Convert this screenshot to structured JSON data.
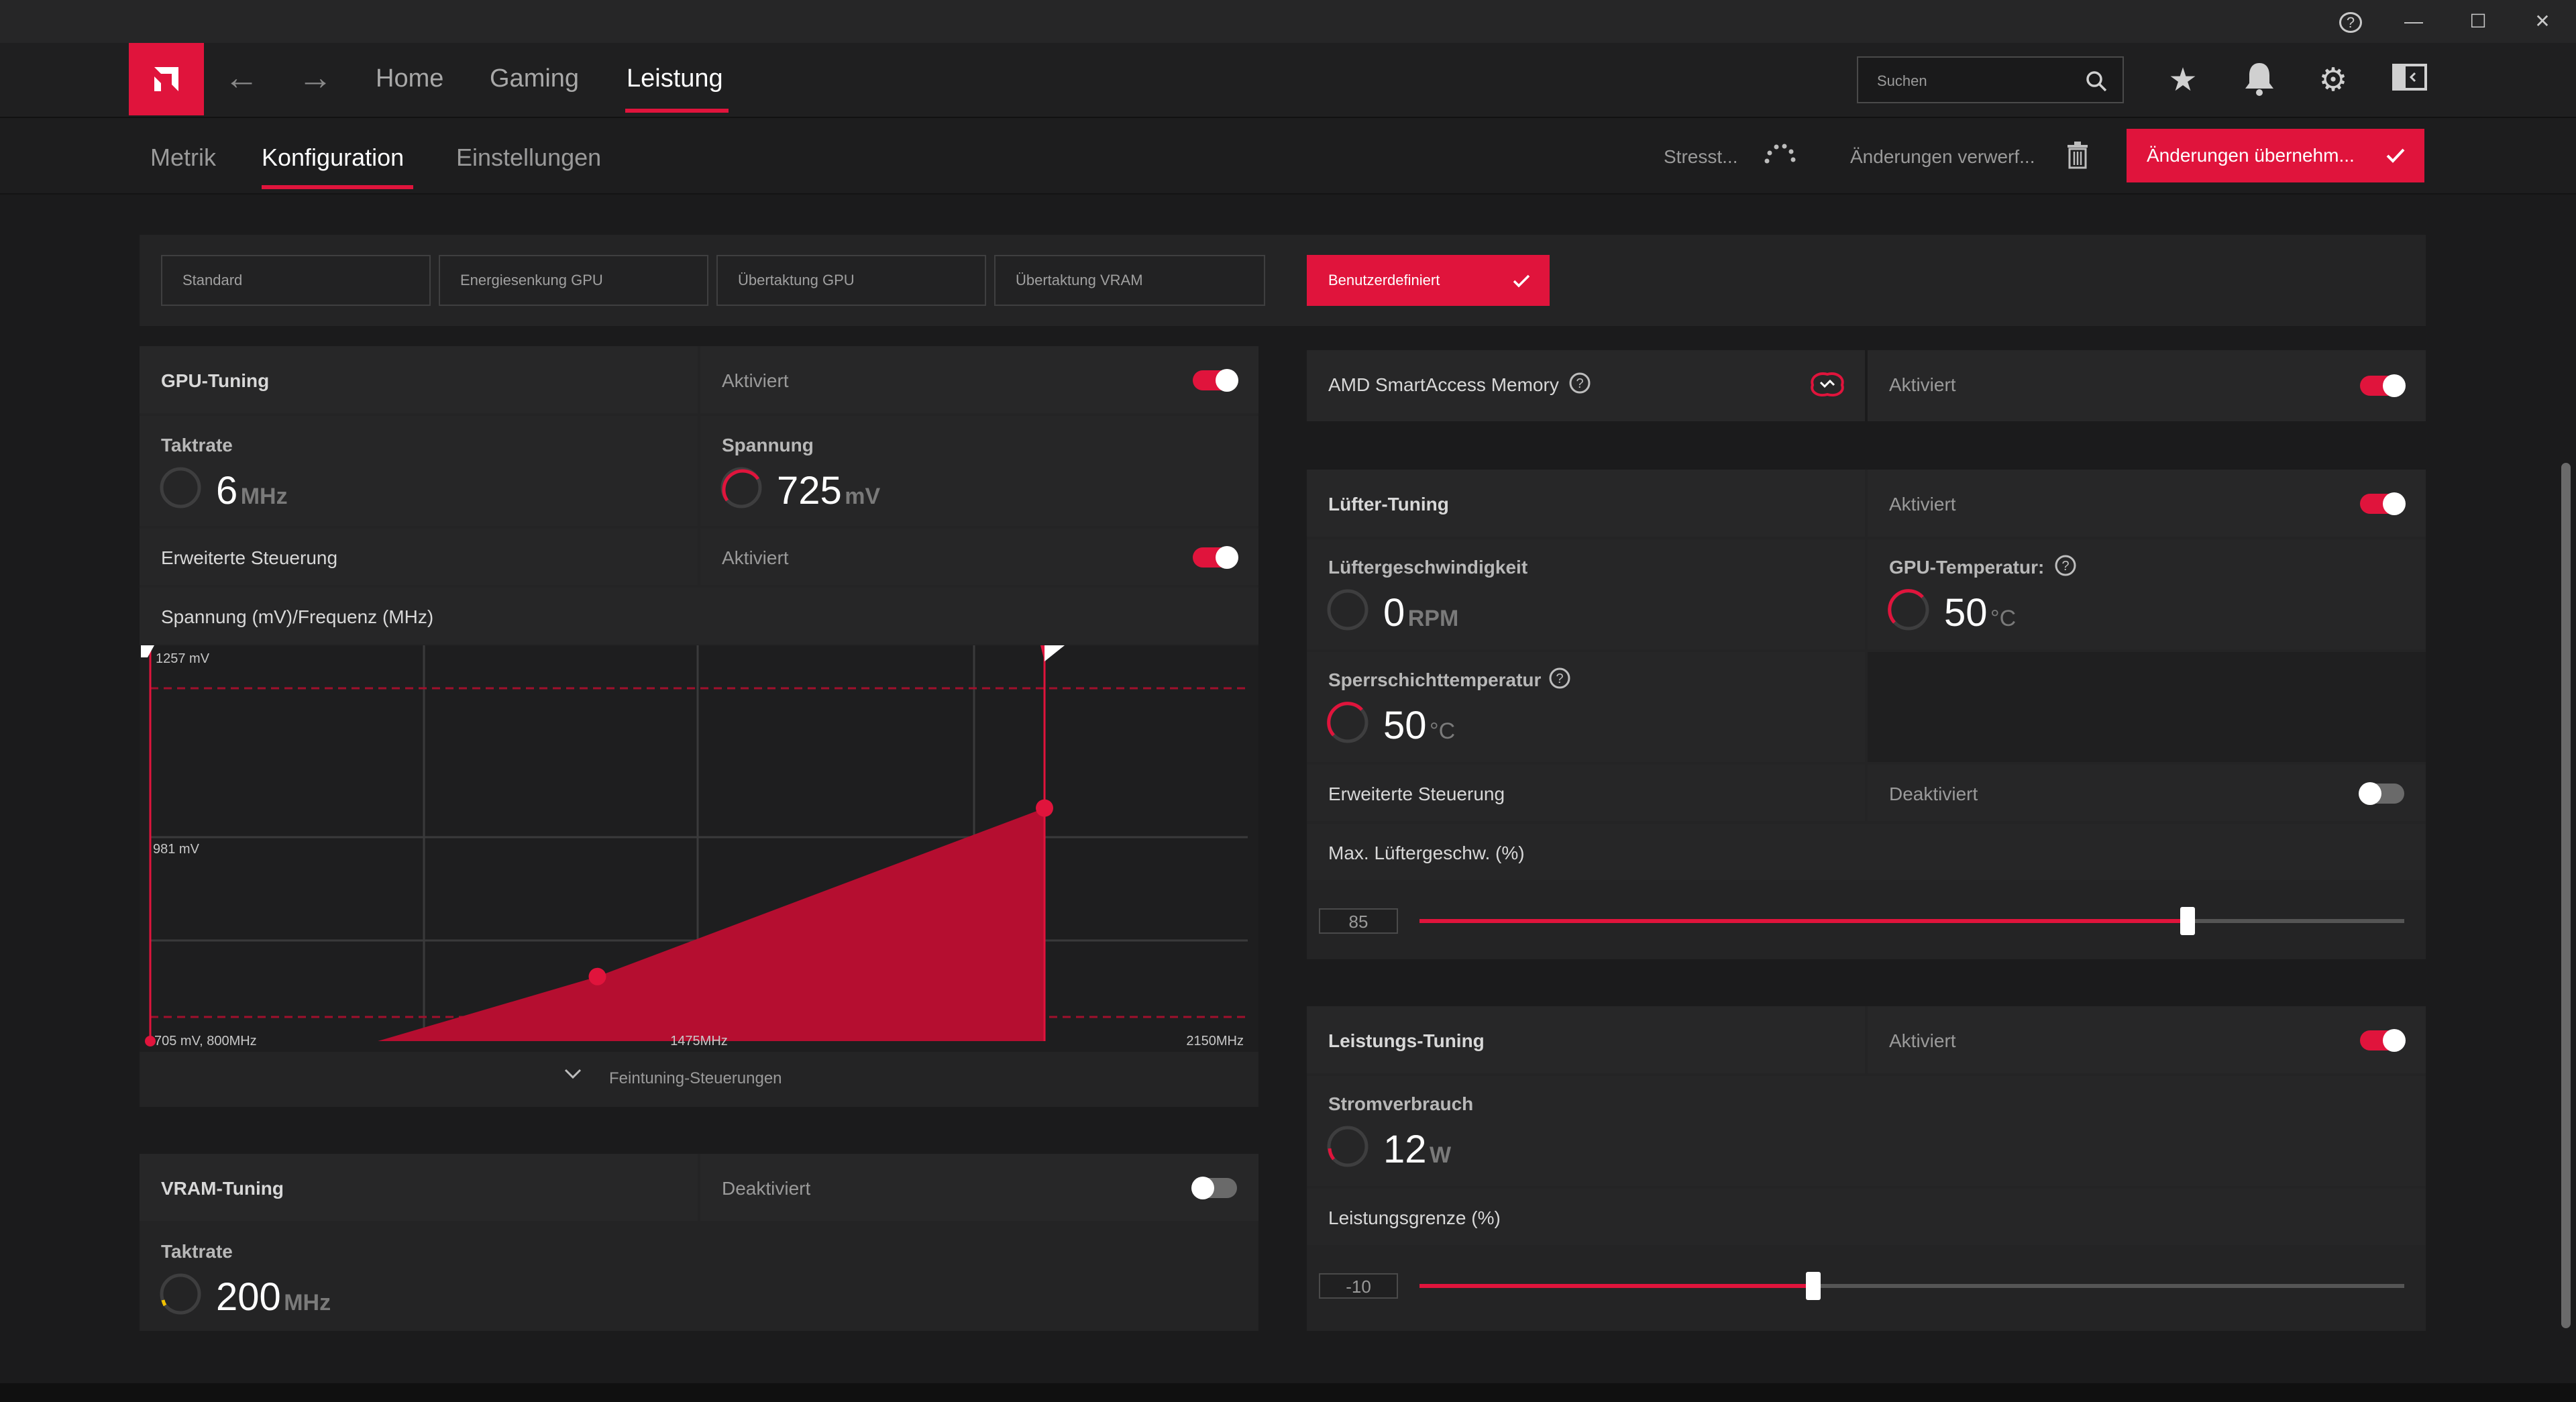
{
  "window": {
    "help": "?",
    "minimize": "—",
    "maximize": "☐",
    "close": "✕"
  },
  "nav": {
    "back": "←",
    "forward": "→",
    "tabs": [
      {
        "label": "Home"
      },
      {
        "label": "Gaming"
      },
      {
        "label": "Leistung"
      }
    ],
    "search_placeholder": "Suchen"
  },
  "subnav": {
    "tabs": [
      {
        "label": "Metrik"
      },
      {
        "label": "Konfiguration"
      },
      {
        "label": "Einstellungen"
      }
    ],
    "stress_label": "Stresst...",
    "discard_label": "Änderungen verwerf...",
    "apply_label": "Änderungen übernehm..."
  },
  "presets": [
    {
      "label": "Standard"
    },
    {
      "label": "Energiesenkung GPU"
    },
    {
      "label": "Übertaktung GPU"
    },
    {
      "label": "Übertaktung VRAM"
    },
    {
      "label": "Benutzerdefiniert"
    }
  ],
  "gpu_tuning": {
    "title": "GPU-Tuning",
    "status": "Aktiviert",
    "clock_label": "Taktrate",
    "clock_value": "6",
    "clock_unit": "MHz",
    "voltage_label": "Spannung",
    "voltage_value": "725",
    "voltage_unit": "mV",
    "advanced_label": "Erweiterte Steuerung",
    "advanced_status": "Aktiviert",
    "curve_title": "Spannung (mV)/Frequenz (MHz)",
    "finetune_label": "Feintuning-Steuerungen"
  },
  "chart_data": {
    "type": "area",
    "title": "Spannung (mV)/Frequenz (MHz)",
    "xlabel": "",
    "ylabel": "",
    "x_ticks": [
      "705 mV, 800MHz",
      "1475MHz",
      "2150MHz"
    ],
    "y_ticks": [
      "1257 mV",
      "981 mV"
    ],
    "xlim": [
      800,
      2150
    ],
    "ylim": [
      705,
      1257
    ],
    "x": [
      800,
      1080,
      1350,
      1900
    ],
    "y": [
      705,
      705,
      795,
      1030
    ],
    "highlight_points": [
      {
        "x": 1350,
        "y": 795
      },
      {
        "x": 1900,
        "y": 1030
      }
    ],
    "grid": true
  },
  "vram_tuning": {
    "title": "VRAM-Tuning",
    "status": "Deaktiviert",
    "clock_label": "Taktrate",
    "clock_value": "200",
    "clock_unit": "MHz"
  },
  "sam": {
    "title": "AMD SmartAccess Memory",
    "status": "Aktiviert"
  },
  "fan_tuning": {
    "title": "Lüfter-Tuning",
    "status": "Aktiviert",
    "speed_label": "Lüftergeschwindigkeit",
    "speed_value": "0",
    "speed_unit": "RPM",
    "gpu_temp_label": "GPU-Temperatur:",
    "gpu_temp_value": "50",
    "gpu_temp_unit": "°C",
    "junction_label": "Sperrschichttemperatur",
    "junction_value": "50",
    "junction_unit": "°C",
    "advanced_label": "Erweiterte Steuerung",
    "advanced_status": "Deaktiviert",
    "max_speed_label": "Max. Lüftergeschw. (%)",
    "max_speed_value": "85",
    "max_speed_fraction": 0.78
  },
  "power_tuning": {
    "title": "Leistungs-Tuning",
    "status": "Aktiviert",
    "consumption_label": "Stromverbrauch",
    "consumption_value": "12",
    "consumption_unit": "W",
    "limit_label": "Leistungsgrenze (%)",
    "limit_value": "-10",
    "limit_fraction": 0.4
  },
  "colors": {
    "accent": "#e0143c",
    "panel": "#262627",
    "background": "#1b1b1c"
  }
}
